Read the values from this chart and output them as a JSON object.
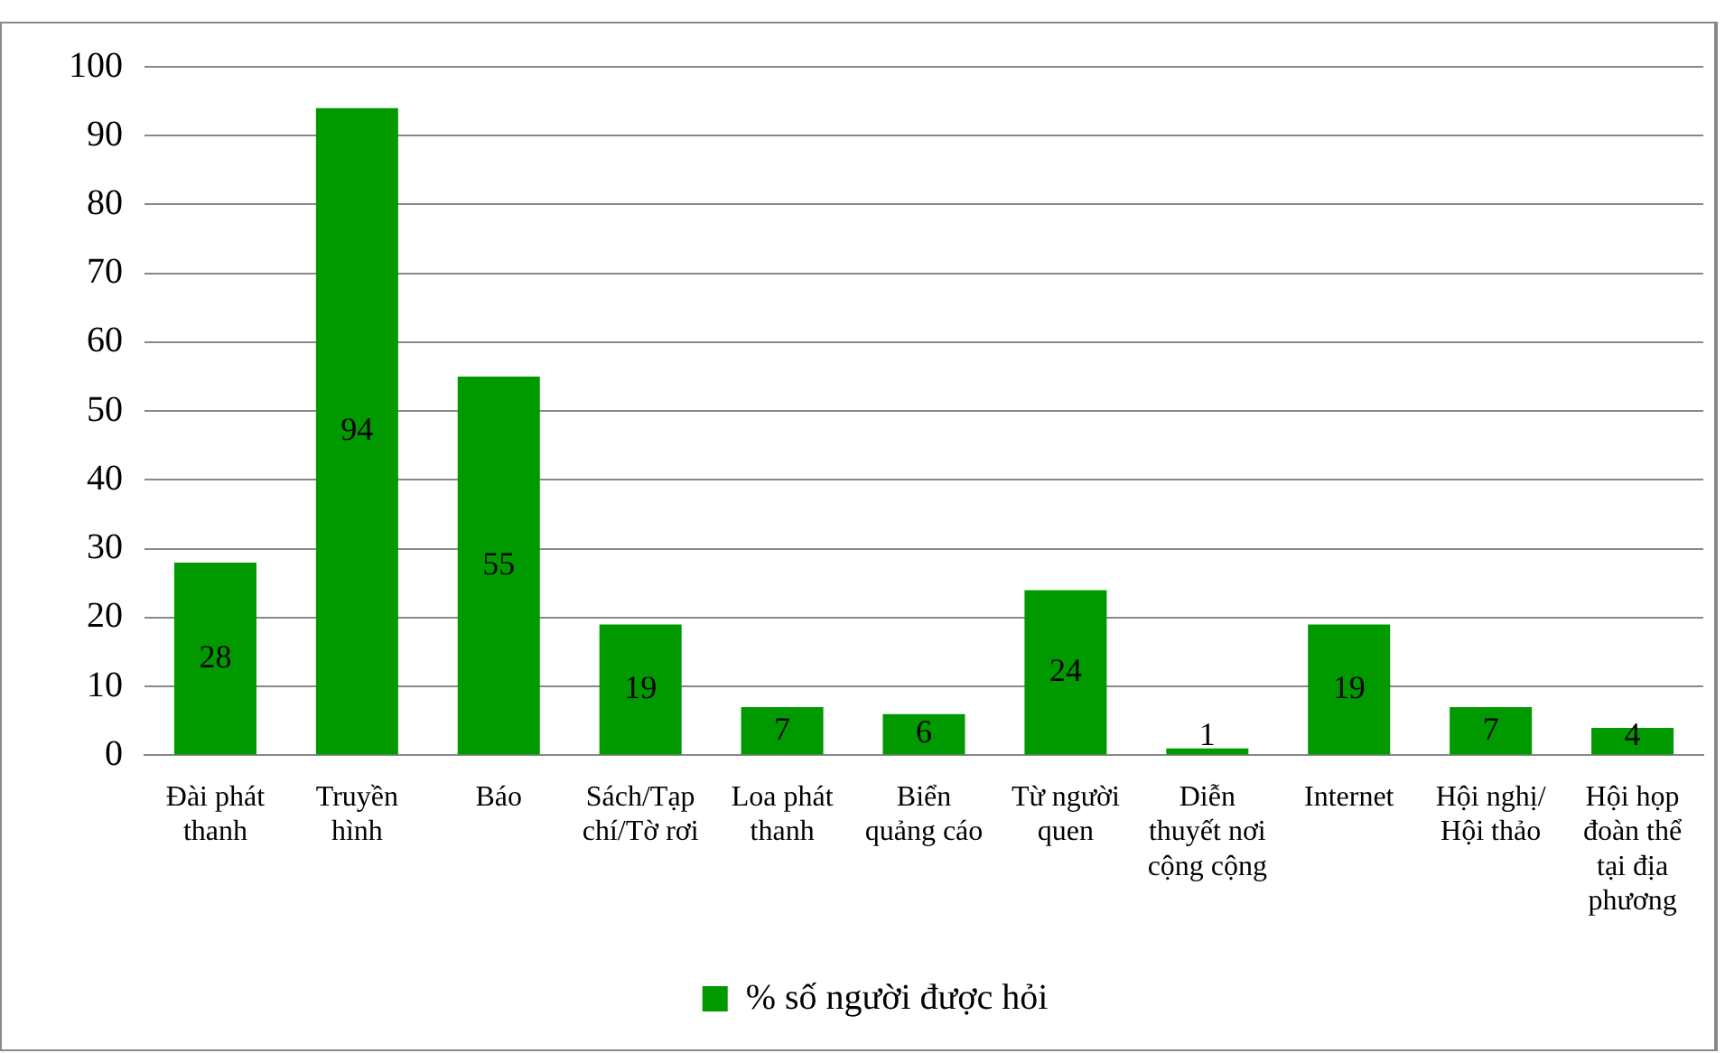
{
  "chart_data": {
    "type": "bar",
    "categories": [
      "Đài phát thanh",
      "Truyền hình",
      "Báo",
      "Sách/Tạp chí/Tờ rơi",
      "Loa phát thanh",
      "Biển quảng cáo",
      "Từ người quen",
      "Diễn thuyết nơi cộng cộng",
      "Internet",
      "Hội nghị/ Hội thảo",
      "Hội họp đoàn thể tại địa phương"
    ],
    "series": [
      {
        "name": "% số người được hỏi",
        "color": "#009900",
        "values": [
          28,
          94,
          55,
          19,
          7,
          6,
          24,
          1,
          19,
          7,
          4
        ]
      }
    ],
    "ylim": [
      0,
      100
    ],
    "yticks": [
      0,
      10,
      20,
      30,
      40,
      50,
      60,
      70,
      80,
      90,
      100
    ],
    "grid": "y",
    "legend": "bottom",
    "data_labels": true
  }
}
